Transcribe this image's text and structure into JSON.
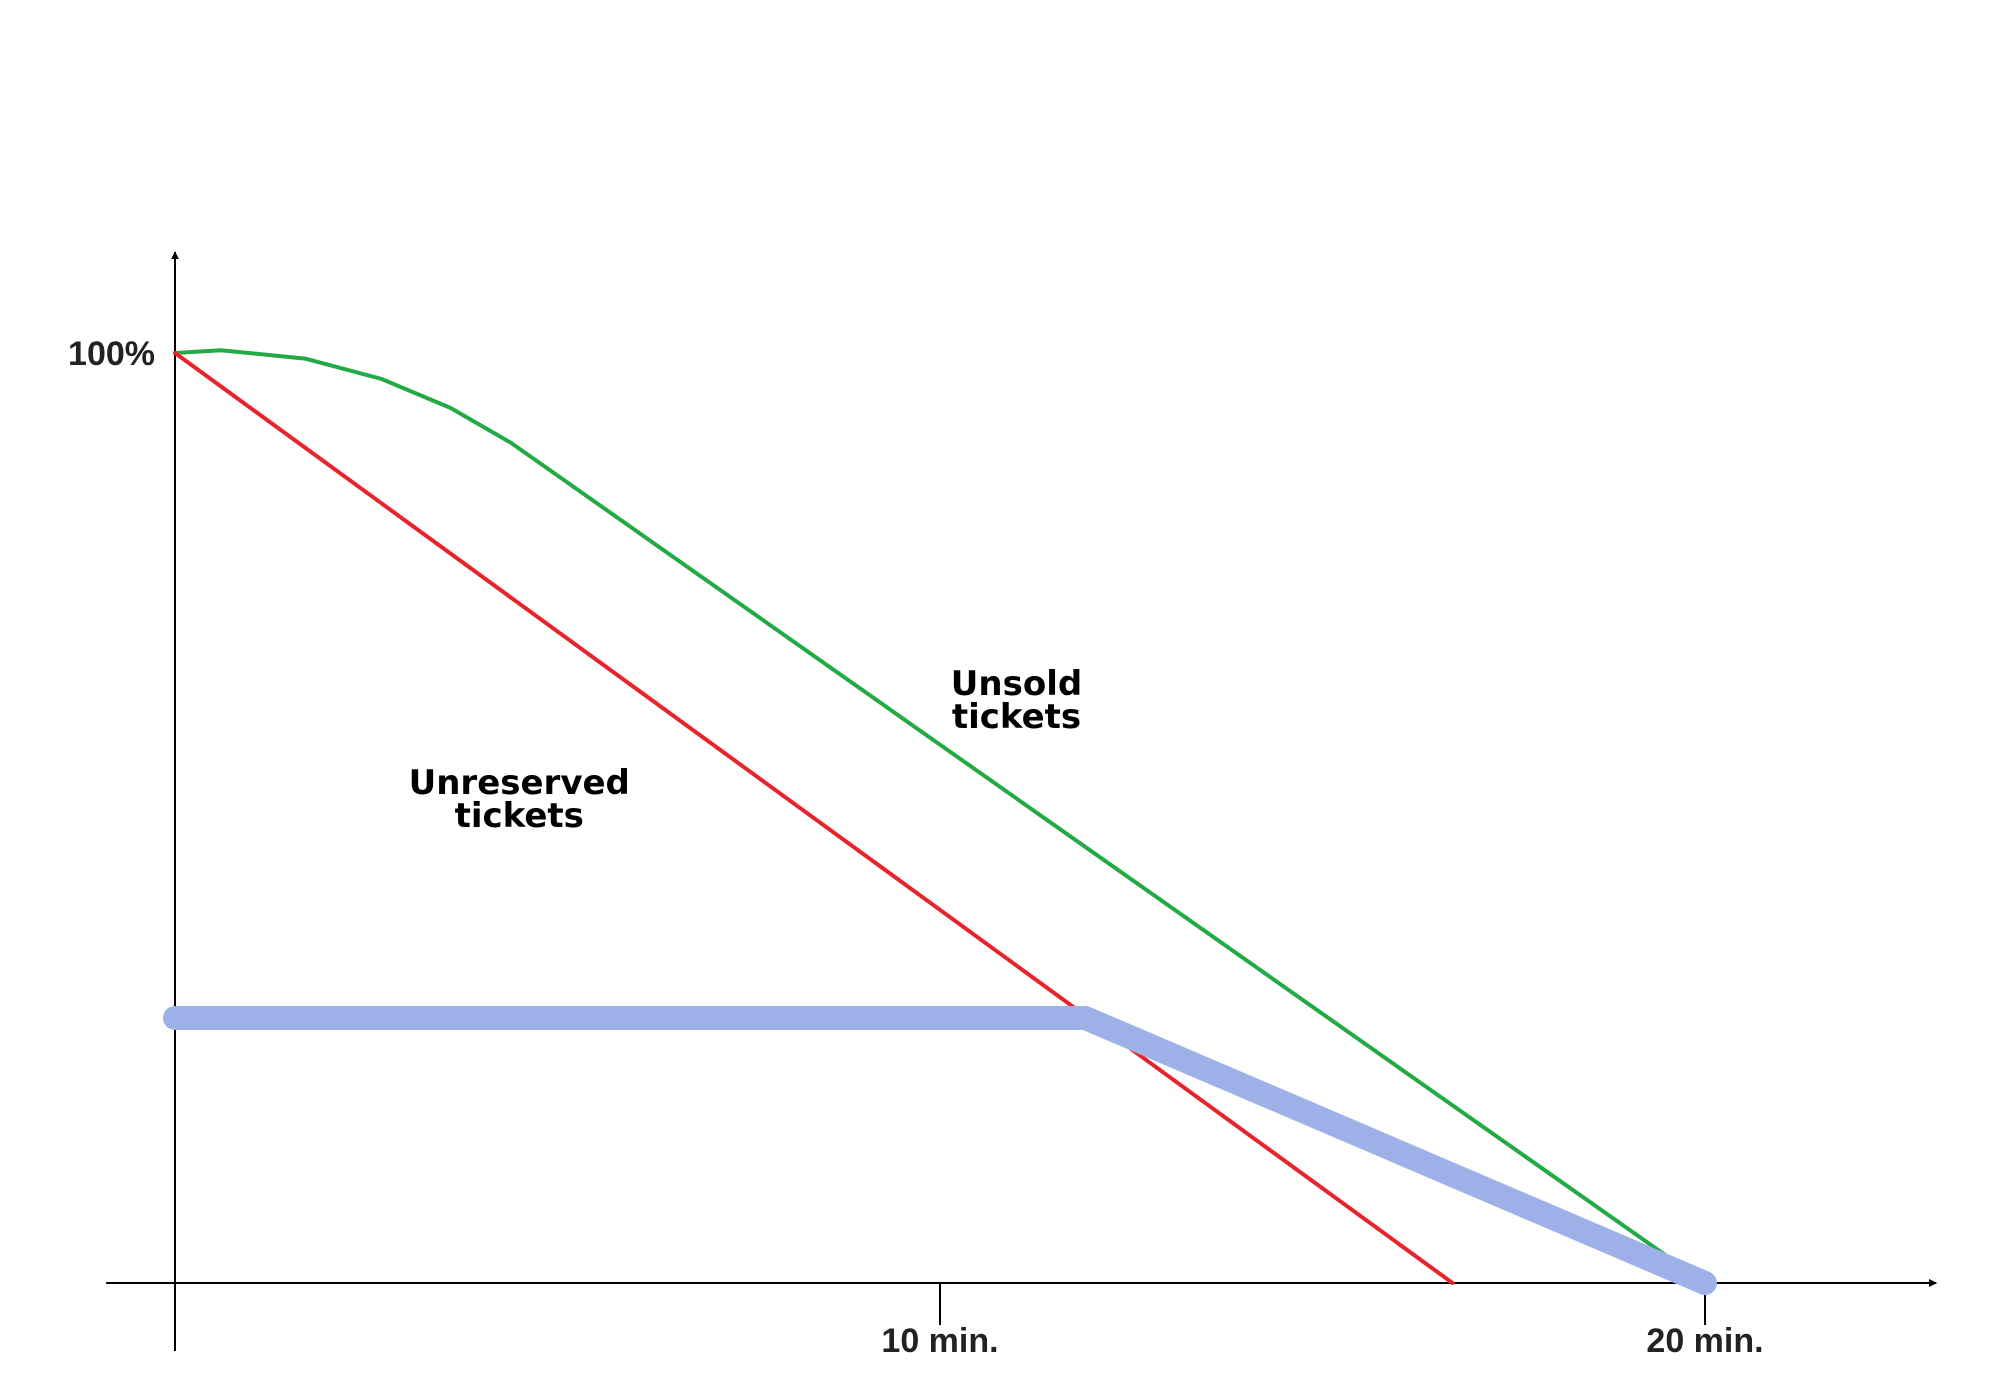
{
  "chart_data": {
    "type": "line",
    "title": "",
    "xlabel": "",
    "ylabel": "",
    "xlim": [
      -0.9,
      22.5
    ],
    "ylim": [
      0,
      100
    ],
    "x_ticks": [
      {
        "value": 10,
        "label": "10 min."
      },
      {
        "value": 20,
        "label": "20 min."
      }
    ],
    "y_ticks": [
      {
        "value": 100,
        "label": "100%"
      }
    ],
    "grid": false,
    "series": [
      {
        "name": "Unsold tickets",
        "label_lines": [
          "Unsold",
          "tickets"
        ],
        "color": "#22aa44",
        "points": [
          [
            0,
            100
          ],
          [
            0.6,
            100.3
          ],
          [
            1.7,
            99.4
          ],
          [
            2.7,
            97.2
          ],
          [
            3.6,
            94.1
          ],
          [
            4.4,
            90.3
          ],
          [
            20,
            0
          ]
        ]
      },
      {
        "name": "Unreserved tickets",
        "label_lines": [
          "Unreserved",
          "tickets"
        ],
        "color": "#e8232b",
        "points": [
          [
            0,
            100
          ],
          [
            16.7,
            0
          ]
        ]
      },
      {
        "name": "",
        "color": "#9db1e8",
        "points": [
          [
            0,
            28.5
          ],
          [
            11.9,
            28.5
          ],
          [
            20,
            0
          ]
        ]
      }
    ]
  }
}
